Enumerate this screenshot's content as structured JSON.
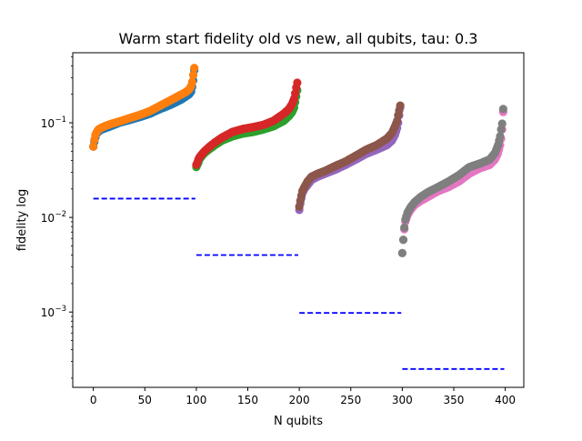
{
  "chart_data": {
    "type": "scatter",
    "title": "Warm start fidelity old vs new, all qubits, tau: 0.3",
    "xlabel": "N qubits",
    "ylabel": "fidelity log",
    "xlim": [
      -20,
      418
    ],
    "ylim": [
      0.00016,
      0.55
    ],
    "yscale": "log",
    "grid": false,
    "legend": "none",
    "x_ticks": [
      0,
      50,
      100,
      150,
      200,
      250,
      300,
      350,
      400
    ],
    "x_tick_labels": [
      "0",
      "50",
      "100",
      "150",
      "200",
      "250",
      "300",
      "350",
      "400"
    ],
    "y_ticks": [
      0.001,
      0.01,
      0.1
    ],
    "y_tick_labels": [
      {
        "base": "10",
        "exp": "−3"
      },
      {
        "base": "10",
        "exp": "−2"
      },
      {
        "base": "10",
        "exp": "−1"
      }
    ],
    "series": [
      {
        "group": 0,
        "color": "#1f77b4",
        "x": [
          0,
          1,
          2,
          3,
          5,
          8,
          12,
          18,
          25,
          35,
          45,
          55,
          65,
          75,
          85,
          90,
          93,
          95,
          96,
          97,
          98
        ],
        "y": [
          0.056,
          0.063,
          0.07,
          0.076,
          0.081,
          0.085,
          0.088,
          0.093,
          0.1,
          0.107,
          0.115,
          0.125,
          0.14,
          0.155,
          0.175,
          0.19,
          0.2,
          0.215,
          0.24,
          0.28,
          0.36
        ]
      },
      {
        "group": 0,
        "color": "#ff7f0e",
        "x": [
          0,
          1,
          2,
          3,
          5,
          8,
          12,
          18,
          25,
          35,
          45,
          55,
          65,
          75,
          85,
          90,
          93,
          95,
          96,
          97,
          98
        ],
        "y": [
          0.056,
          0.066,
          0.074,
          0.079,
          0.085,
          0.089,
          0.093,
          0.098,
          0.103,
          0.112,
          0.121,
          0.133,
          0.152,
          0.173,
          0.198,
          0.212,
          0.225,
          0.245,
          0.27,
          0.32,
          0.38
        ]
      },
      {
        "group": 1,
        "color": "#2ca02c",
        "x": [
          100,
          101,
          102,
          103,
          105,
          108,
          112,
          118,
          125,
          135,
          145,
          155,
          165,
          175,
          185,
          190,
          193,
          195,
          196,
          197,
          198
        ],
        "y": [
          0.034,
          0.036,
          0.038,
          0.041,
          0.044,
          0.048,
          0.052,
          0.058,
          0.065,
          0.072,
          0.077,
          0.08,
          0.085,
          0.092,
          0.105,
          0.118,
          0.13,
          0.145,
          0.165,
          0.19,
          0.22
        ]
      },
      {
        "group": 1,
        "color": "#d62728",
        "x": [
          100,
          101,
          102,
          103,
          105,
          108,
          112,
          118,
          125,
          135,
          145,
          155,
          165,
          175,
          185,
          190,
          193,
          195,
          196,
          197,
          198
        ],
        "y": [
          0.036,
          0.038,
          0.041,
          0.043,
          0.046,
          0.05,
          0.055,
          0.062,
          0.07,
          0.08,
          0.086,
          0.09,
          0.095,
          0.105,
          0.125,
          0.14,
          0.158,
          0.18,
          0.205,
          0.235,
          0.265
        ]
      },
      {
        "group": 2,
        "color": "#9467bd",
        "x": [
          200,
          201,
          202,
          203,
          205,
          208,
          212,
          218,
          225,
          235,
          245,
          255,
          265,
          275,
          285,
          290,
          293,
          295,
          296,
          297,
          298
        ],
        "y": [
          0.012,
          0.014,
          0.016,
          0.018,
          0.02,
          0.022,
          0.025,
          0.027,
          0.029,
          0.032,
          0.036,
          0.041,
          0.047,
          0.052,
          0.058,
          0.065,
          0.075,
          0.088,
          0.1,
          0.12,
          0.145
        ]
      },
      {
        "group": 2,
        "color": "#8c564b",
        "x": [
          200,
          201,
          202,
          203,
          205,
          208,
          212,
          218,
          225,
          235,
          245,
          255,
          265,
          275,
          285,
          290,
          293,
          295,
          296,
          297,
          298
        ],
        "y": [
          0.013,
          0.015,
          0.017,
          0.019,
          0.021,
          0.024,
          0.027,
          0.029,
          0.031,
          0.035,
          0.039,
          0.045,
          0.052,
          0.058,
          0.068,
          0.078,
          0.092,
          0.105,
          0.12,
          0.135,
          0.152
        ]
      },
      {
        "group": 3,
        "color": "#e377c2",
        "x": [
          300,
          301,
          302,
          303,
          305,
          308,
          312,
          318,
          325,
          335,
          345,
          355,
          365,
          375,
          385,
          390,
          393,
          395,
          396,
          397,
          398
        ],
        "y": [
          0.0042,
          0.0058,
          0.0075,
          0.009,
          0.0105,
          0.012,
          0.0135,
          0.015,
          0.0165,
          0.019,
          0.021,
          0.024,
          0.029,
          0.033,
          0.036,
          0.041,
          0.048,
          0.058,
          0.068,
          0.085,
          0.13
        ]
      },
      {
        "group": 3,
        "color": "#7f7f7f",
        "x": [
          300,
          301,
          302,
          303,
          305,
          308,
          312,
          318,
          325,
          335,
          345,
          355,
          365,
          375,
          385,
          390,
          393,
          395,
          396,
          397,
          398
        ],
        "y": [
          0.0042,
          0.0058,
          0.0078,
          0.0095,
          0.0112,
          0.0128,
          0.0145,
          0.0165,
          0.0185,
          0.021,
          0.024,
          0.028,
          0.034,
          0.037,
          0.041,
          0.048,
          0.058,
          0.072,
          0.085,
          0.098,
          0.14
        ]
      }
    ],
    "reference_lines": {
      "color": "#0000ff",
      "style": "dashed",
      "segments": [
        {
          "x": [
            0,
            99
          ],
          "y": 0.0158
        },
        {
          "x": [
            100,
            199
          ],
          "y": 0.004
        },
        {
          "x": [
            200,
            299
          ],
          "y": 0.00098
        },
        {
          "x": [
            300,
            399
          ],
          "y": 0.00025
        }
      ]
    }
  }
}
